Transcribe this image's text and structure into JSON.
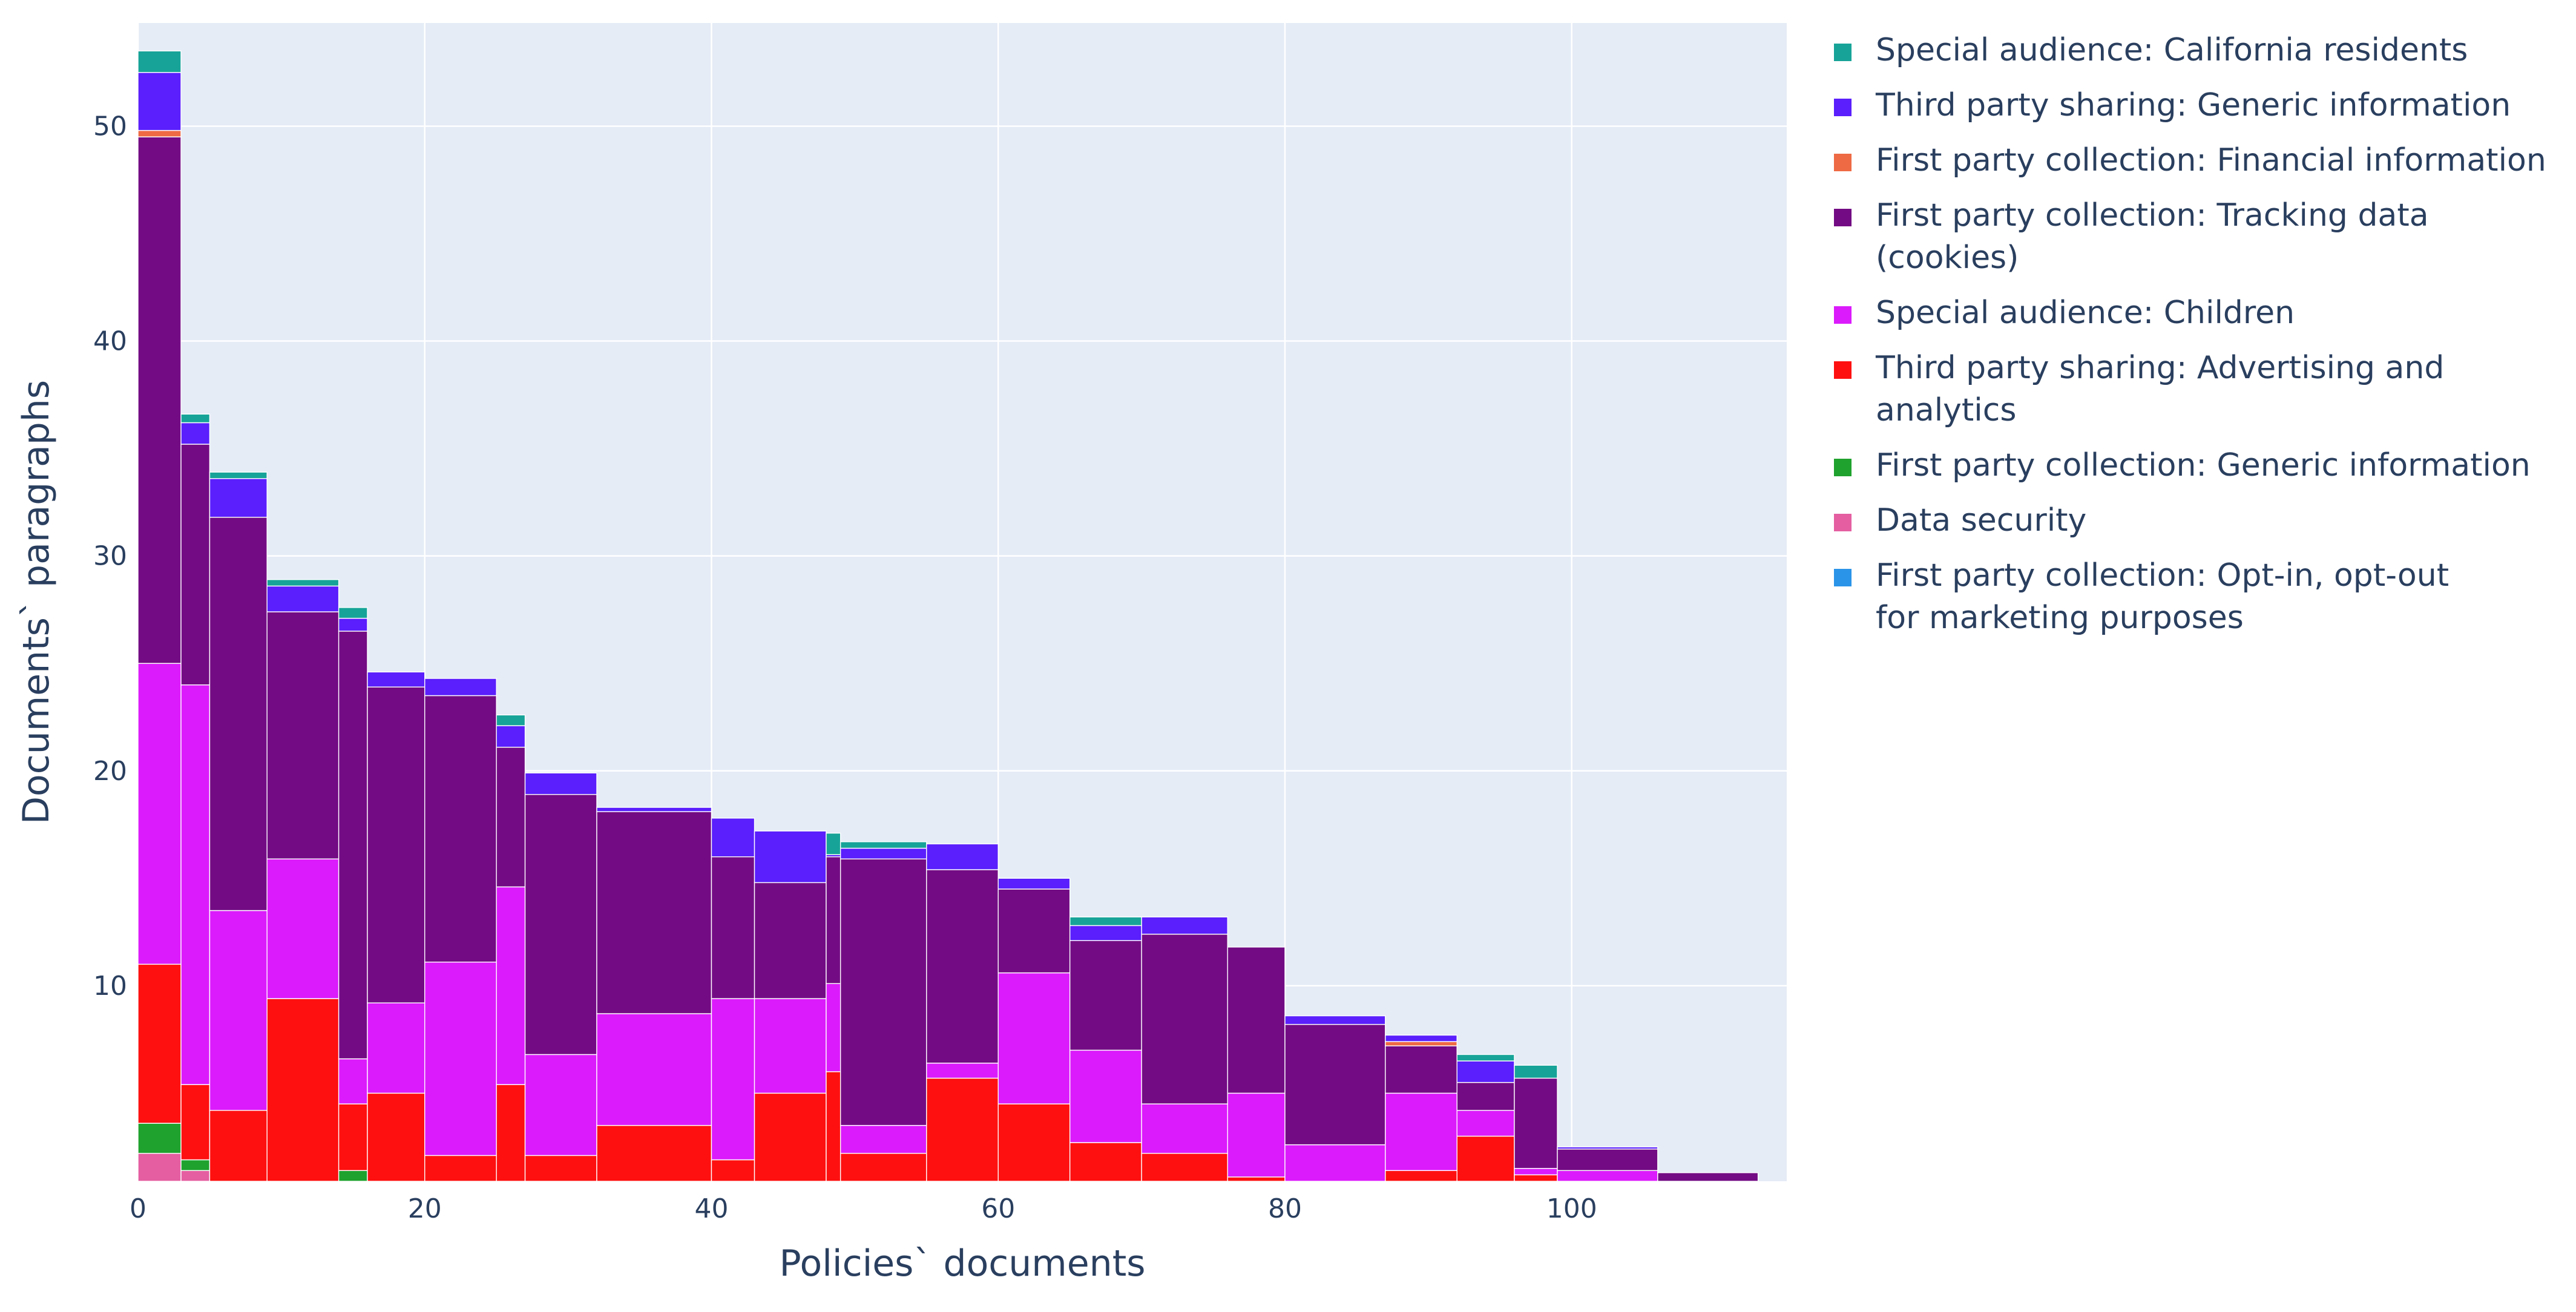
{
  "chart_data": {
    "type": "bar",
    "barmode": "stack",
    "xlabel": "Policies` documents",
    "ylabel": "Documents` paragraphs",
    "xlim": [
      0,
      115
    ],
    "ylim": [
      0.9,
      54.8
    ],
    "x_ticks": [
      0,
      20,
      40,
      60,
      80,
      100
    ],
    "y_ticks": [
      10,
      20,
      30,
      40,
      50
    ],
    "grid": true,
    "legend_position": "right",
    "series": [
      {
        "key": "ds",
        "name": "Data security",
        "color": "#E45EA1"
      },
      {
        "key": "fgen",
        "name": "First party collection: Generic information",
        "color": "#1FA22E"
      },
      {
        "key": "adv",
        "name": "Third party sharing: Advertising and analytics",
        "color": "#FE1010"
      },
      {
        "key": "child",
        "name": "Special audience: Children",
        "color": "#DB1BFB"
      },
      {
        "key": "track",
        "name": "First party collection: Tracking data (cookies)",
        "color": "#730C84"
      },
      {
        "key": "fin",
        "name": "First party collection: Financial information",
        "color": "#EE6A44"
      },
      {
        "key": "tgen",
        "name": "Third party sharing: Generic information",
        "color": "#5A1FFC"
      },
      {
        "key": "ca",
        "name": "Special audience: California residents",
        "color": "#17A398"
      },
      {
        "key": "opt",
        "name": "First party collection: Opt-in, opt-out\nfor marketing purposes",
        "color": "#2A94E8"
      }
    ],
    "bars": [
      {
        "x0": 0,
        "x1": 3,
        "values": {
          "ds": 2.2,
          "fgen": 3.6,
          "adv": 11.0,
          "child": 25.0,
          "track": 49.5,
          "fin": 49.8,
          "tgen": 52.5,
          "ca": 53.5
        }
      },
      {
        "x0": 3,
        "x1": 5,
        "values": {
          "ds": 1.4,
          "fgen": 1.9,
          "adv": 5.4,
          "child": 24.0,
          "track": 35.2,
          "tgen": 36.2,
          "ca": 36.6
        }
      },
      {
        "x0": 5,
        "x1": 9,
        "values": {
          "adv": 4.2,
          "child": 13.5,
          "track": 31.8,
          "tgen": 33.6,
          "ca": 33.9
        }
      },
      {
        "x0": 9,
        "x1": 14,
        "values": {
          "adv": 9.4,
          "child": 15.9,
          "track": 27.4,
          "tgen": 28.6,
          "ca": 28.9
        }
      },
      {
        "x0": 14,
        "x1": 16,
        "values": {
          "fgen": 1.4,
          "adv": 4.5,
          "child": 6.6,
          "track": 26.5,
          "tgen": 27.1,
          "ca": 27.6
        }
      },
      {
        "x0": 16,
        "x1": 20,
        "values": {
          "adv": 5.0,
          "child": 9.2,
          "track": 23.9,
          "tgen": 24.6
        }
      },
      {
        "x0": 20,
        "x1": 25,
        "values": {
          "adv": 2.1,
          "child": 11.1,
          "track": 23.5,
          "tgen": 24.3
        }
      },
      {
        "x0": 25,
        "x1": 27,
        "values": {
          "adv": 5.4,
          "child": 14.6,
          "track": 21.1,
          "tgen": 22.1,
          "ca": 22.6
        }
      },
      {
        "x0": 27,
        "x1": 32,
        "values": {
          "adv": 2.1,
          "child": 6.8,
          "track": 18.9,
          "tgen": 19.9
        }
      },
      {
        "x0": 32,
        "x1": 40,
        "values": {
          "adv": 3.5,
          "child": 8.7,
          "track": 18.1,
          "tgen": 18.3
        }
      },
      {
        "x0": 40,
        "x1": 43,
        "values": {
          "adv": 1.9,
          "child": 9.4,
          "track": 16.0,
          "tgen": 17.8
        }
      },
      {
        "x0": 43,
        "x1": 48,
        "values": {
          "adv": 5.0,
          "child": 9.4,
          "track": 14.8,
          "tgen": 17.2
        }
      },
      {
        "x0": 48,
        "x1": 49,
        "values": {
          "adv": 6.0,
          "child": 10.1,
          "track": 16.0,
          "tgen": 16.1,
          "ca": 17.1
        }
      },
      {
        "x0": 49,
        "x1": 55,
        "values": {
          "adv": 2.2,
          "child": 3.5,
          "track": 15.9,
          "tgen": 16.4,
          "ca": 16.7
        }
      },
      {
        "x0": 55,
        "x1": 60,
        "values": {
          "adv": 5.7,
          "child": 6.4,
          "track": 15.4,
          "tgen": 16.6
        }
      },
      {
        "x0": 60,
        "x1": 65,
        "values": {
          "adv": 4.5,
          "child": 10.6,
          "track": 14.5,
          "tgen": 15.0
        }
      },
      {
        "x0": 65,
        "x1": 70,
        "values": {
          "adv": 2.7,
          "child": 7.0,
          "track": 12.1,
          "tgen": 12.8,
          "ca": 13.2
        }
      },
      {
        "x0": 70,
        "x1": 76,
        "values": {
          "adv": 2.2,
          "child": 4.5,
          "track": 12.4,
          "tgen": 13.2
        }
      },
      {
        "x0": 76,
        "x1": 80,
        "values": {
          "adv": 1.1,
          "child": 5.0,
          "track": 11.8
        }
      },
      {
        "x0": 80,
        "x1": 87,
        "values": {
          "child": 2.6,
          "track": 8.2,
          "tgen": 8.6
        }
      },
      {
        "x0": 87,
        "x1": 92,
        "values": {
          "adv": 1.4,
          "child": 5.0,
          "track": 7.2,
          "fin": 7.4,
          "tgen": 7.7
        }
      },
      {
        "x0": 92,
        "x1": 96,
        "values": {
          "adv": 3.0,
          "child": 4.2,
          "track": 5.5,
          "tgen": 6.5,
          "ca": 6.8
        }
      },
      {
        "x0": 96,
        "x1": 99,
        "values": {
          "adv": 1.2,
          "child": 1.5,
          "track": 5.7,
          "ca": 6.3
        }
      },
      {
        "x0": 99,
        "x1": 106,
        "values": {
          "child": 1.4,
          "track": 2.4,
          "tgen": 2.5
        }
      },
      {
        "x0": 106,
        "x1": 113,
        "values": {
          "track": 1.3
        }
      }
    ]
  },
  "legend": {
    "order": [
      "ca",
      "tgen",
      "fin",
      "track",
      "child",
      "adv",
      "fgen",
      "ds",
      "opt"
    ]
  }
}
